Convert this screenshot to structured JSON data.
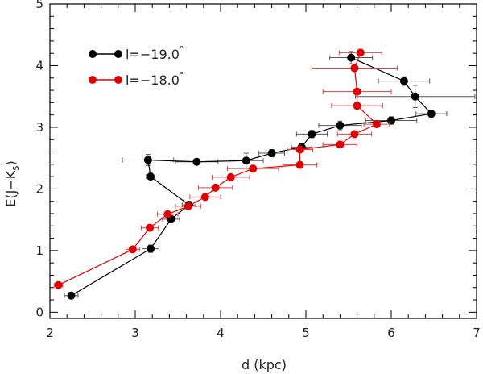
{
  "chart_data": {
    "type": "scatter",
    "title": "",
    "xlabel": "d (kpc)",
    "ylabel_main": "E(J−K",
    "ylabel_sub": "s",
    "ylabel_close": ")",
    "xlim": [
      2,
      7
    ],
    "ylim": [
      -0.1,
      5
    ],
    "xticks": [
      2,
      3,
      4,
      5,
      6,
      7
    ],
    "yticks": [
      0,
      1,
      2,
      3,
      4,
      5
    ],
    "grid": false,
    "legend_position": "top-left",
    "series": [
      {
        "name": "l=−19.0°",
        "label_main": "l=−19.0",
        "label_sup": "°",
        "color": "#000000",
        "points": [
          {
            "x": 2.25,
            "y": 0.27,
            "xerr": 0.08,
            "yerr": 0.05
          },
          {
            "x": 3.18,
            "y": 1.03,
            "xerr": 0.1,
            "yerr": 0.06
          },
          {
            "x": 3.42,
            "y": 1.51,
            "xerr": 0.1,
            "yerr": 0.06
          },
          {
            "x": 3.63,
            "y": 1.74,
            "xerr": 0.08,
            "yerr": 0.06
          },
          {
            "x": 3.18,
            "y": 2.2,
            "xerr": 0.05,
            "yerr": 0.07
          },
          {
            "x": 3.15,
            "y": 2.47,
            "xerr": 0.3,
            "yerr": 0.09
          },
          {
            "x": 3.72,
            "y": 2.44,
            "xerr": 0.25,
            "yerr": 0.05
          },
          {
            "x": 4.3,
            "y": 2.46,
            "xerr": 0.2,
            "yerr": 0.12
          },
          {
            "x": 4.6,
            "y": 2.58,
            "xerr": 0.15,
            "yerr": 0.06
          },
          {
            "x": 4.95,
            "y": 2.68,
            "xerr": 0.12,
            "yerr": 0.06
          },
          {
            "x": 5.07,
            "y": 2.89,
            "xerr": 0.18,
            "yerr": 0.06
          },
          {
            "x": 5.4,
            "y": 3.03,
            "xerr": 0.25,
            "yerr": 0.07
          },
          {
            "x": 6.0,
            "y": 3.11,
            "xerr": 0.3,
            "yerr": 0.06
          },
          {
            "x": 6.47,
            "y": 3.22,
            "xerr": 0.18,
            "yerr": 0.06
          },
          {
            "x": 6.28,
            "y": 3.5,
            "xerr": 0.7,
            "yerr": 0.18
          },
          {
            "x": 6.15,
            "y": 3.75,
            "xerr": 0.3,
            "yerr": 0.07
          },
          {
            "x": 5.53,
            "y": 4.13,
            "xerr": 0.25,
            "yerr": 0.1
          }
        ]
      },
      {
        "name": "l=−18.0°",
        "label_main": "l=−18.0",
        "label_sup": "°",
        "color": "#e00000",
        "points": [
          {
            "x": 2.1,
            "y": 0.44,
            "xerr": 0.05,
            "yerr": 0.03
          },
          {
            "x": 2.97,
            "y": 1.02,
            "xerr": 0.08,
            "yerr": 0.03
          },
          {
            "x": 3.17,
            "y": 1.37,
            "xerr": 0.1,
            "yerr": 0.03
          },
          {
            "x": 3.38,
            "y": 1.59,
            "xerr": 0.12,
            "yerr": 0.03
          },
          {
            "x": 3.62,
            "y": 1.72,
            "xerr": 0.15,
            "yerr": 0.03
          },
          {
            "x": 3.82,
            "y": 1.87,
            "xerr": 0.18,
            "yerr": 0.03
          },
          {
            "x": 3.94,
            "y": 2.02,
            "xerr": 0.2,
            "yerr": 0.03
          },
          {
            "x": 4.12,
            "y": 2.19,
            "xerr": 0.22,
            "yerr": 0.03
          },
          {
            "x": 4.38,
            "y": 2.33,
            "xerr": 0.3,
            "yerr": 0.03
          },
          {
            "x": 4.93,
            "y": 2.39,
            "xerr": 0.2,
            "yerr": 0.04
          },
          {
            "x": 4.93,
            "y": 2.64,
            "xerr": 0.15,
            "yerr": 0.04
          },
          {
            "x": 5.4,
            "y": 2.72,
            "xerr": 0.2,
            "yerr": 0.04
          },
          {
            "x": 5.57,
            "y": 2.89,
            "xerr": 0.2,
            "yerr": 0.04
          },
          {
            "x": 5.83,
            "y": 3.05,
            "xerr": 0.15,
            "yerr": 0.04
          },
          {
            "x": 5.6,
            "y": 3.35,
            "xerr": 0.3,
            "yerr": 0.04
          },
          {
            "x": 5.6,
            "y": 3.58,
            "xerr": 0.4,
            "yerr": 0.04
          },
          {
            "x": 5.57,
            "y": 3.96,
            "xerr": 0.5,
            "yerr": 0.04
          },
          {
            "x": 5.64,
            "y": 4.21,
            "xerr": 0.25,
            "yerr": 0.05
          }
        ]
      }
    ]
  }
}
